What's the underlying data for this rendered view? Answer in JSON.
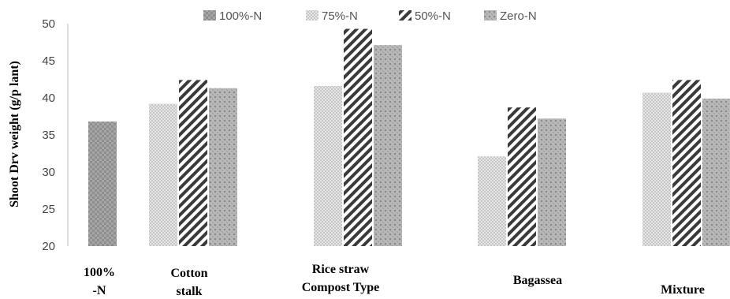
{
  "chart_data": {
    "type": "bar",
    "ylabel": "Shoot Drv weight (g/p lant)",
    "xlabel": "Compost Type",
    "ylim": [
      20,
      50
    ],
    "yticks": [
      20,
      25,
      30,
      35,
      40,
      45,
      50
    ],
    "categories": [
      [
        "100%",
        "-N"
      ],
      [
        "Cotton",
        "stalk"
      ],
      [
        "Rice straw"
      ],
      [
        "Bagassea"
      ],
      [
        "Mixture"
      ]
    ],
    "legend_position": "top",
    "series": [
      {
        "name": "100%-N",
        "color": "#9a9a9a",
        "values": [
          36.8,
          null,
          null,
          null,
          null
        ]
      },
      {
        "name": "75%-N",
        "color": "#c8c8c8",
        "values": [
          null,
          39.2,
          41.6,
          32.1,
          40.7
        ]
      },
      {
        "name": "50%-N",
        "color": "#404040",
        "values": [
          null,
          42.4,
          49.3,
          38.7,
          42.4
        ]
      },
      {
        "name": "Zero-N",
        "color": "#a8a8a8",
        "values": [
          null,
          41.3,
          47.1,
          37.2,
          39.9
        ]
      }
    ]
  }
}
